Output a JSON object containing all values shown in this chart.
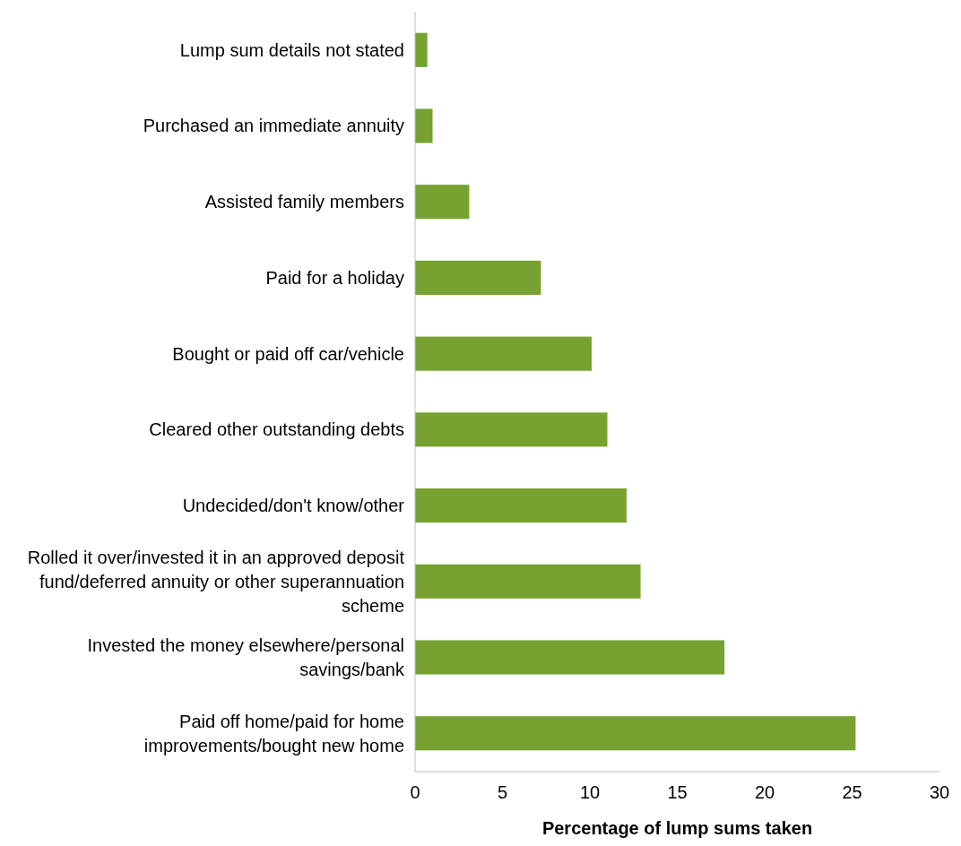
{
  "chart_data": {
    "type": "bar",
    "orientation": "horizontal",
    "xlabel": "Percentage of lump sums taken",
    "categories": [
      "Lump sum details not stated",
      "Purchased an immediate annuity",
      "Assisted family members",
      "Paid for a holiday",
      "Bought or paid off car/vehicle",
      "Cleared other outstanding debts",
      "Undecided/don't know/other",
      "Rolled it over/invested it in an approved deposit fund/deferred annuity or other superannuation scheme",
      "Invested the money elsewhere/personal savings/bank",
      "Paid off home/paid for home improvements/bought new home"
    ],
    "values": [
      0.7,
      1.0,
      3.1,
      7.2,
      10.1,
      11.0,
      12.1,
      12.9,
      17.7,
      25.2
    ],
    "color": "#77a232",
    "xlim": [
      0,
      30
    ],
    "xticks": [
      0,
      5,
      10,
      15,
      20,
      25,
      30
    ],
    "grid": false
  }
}
